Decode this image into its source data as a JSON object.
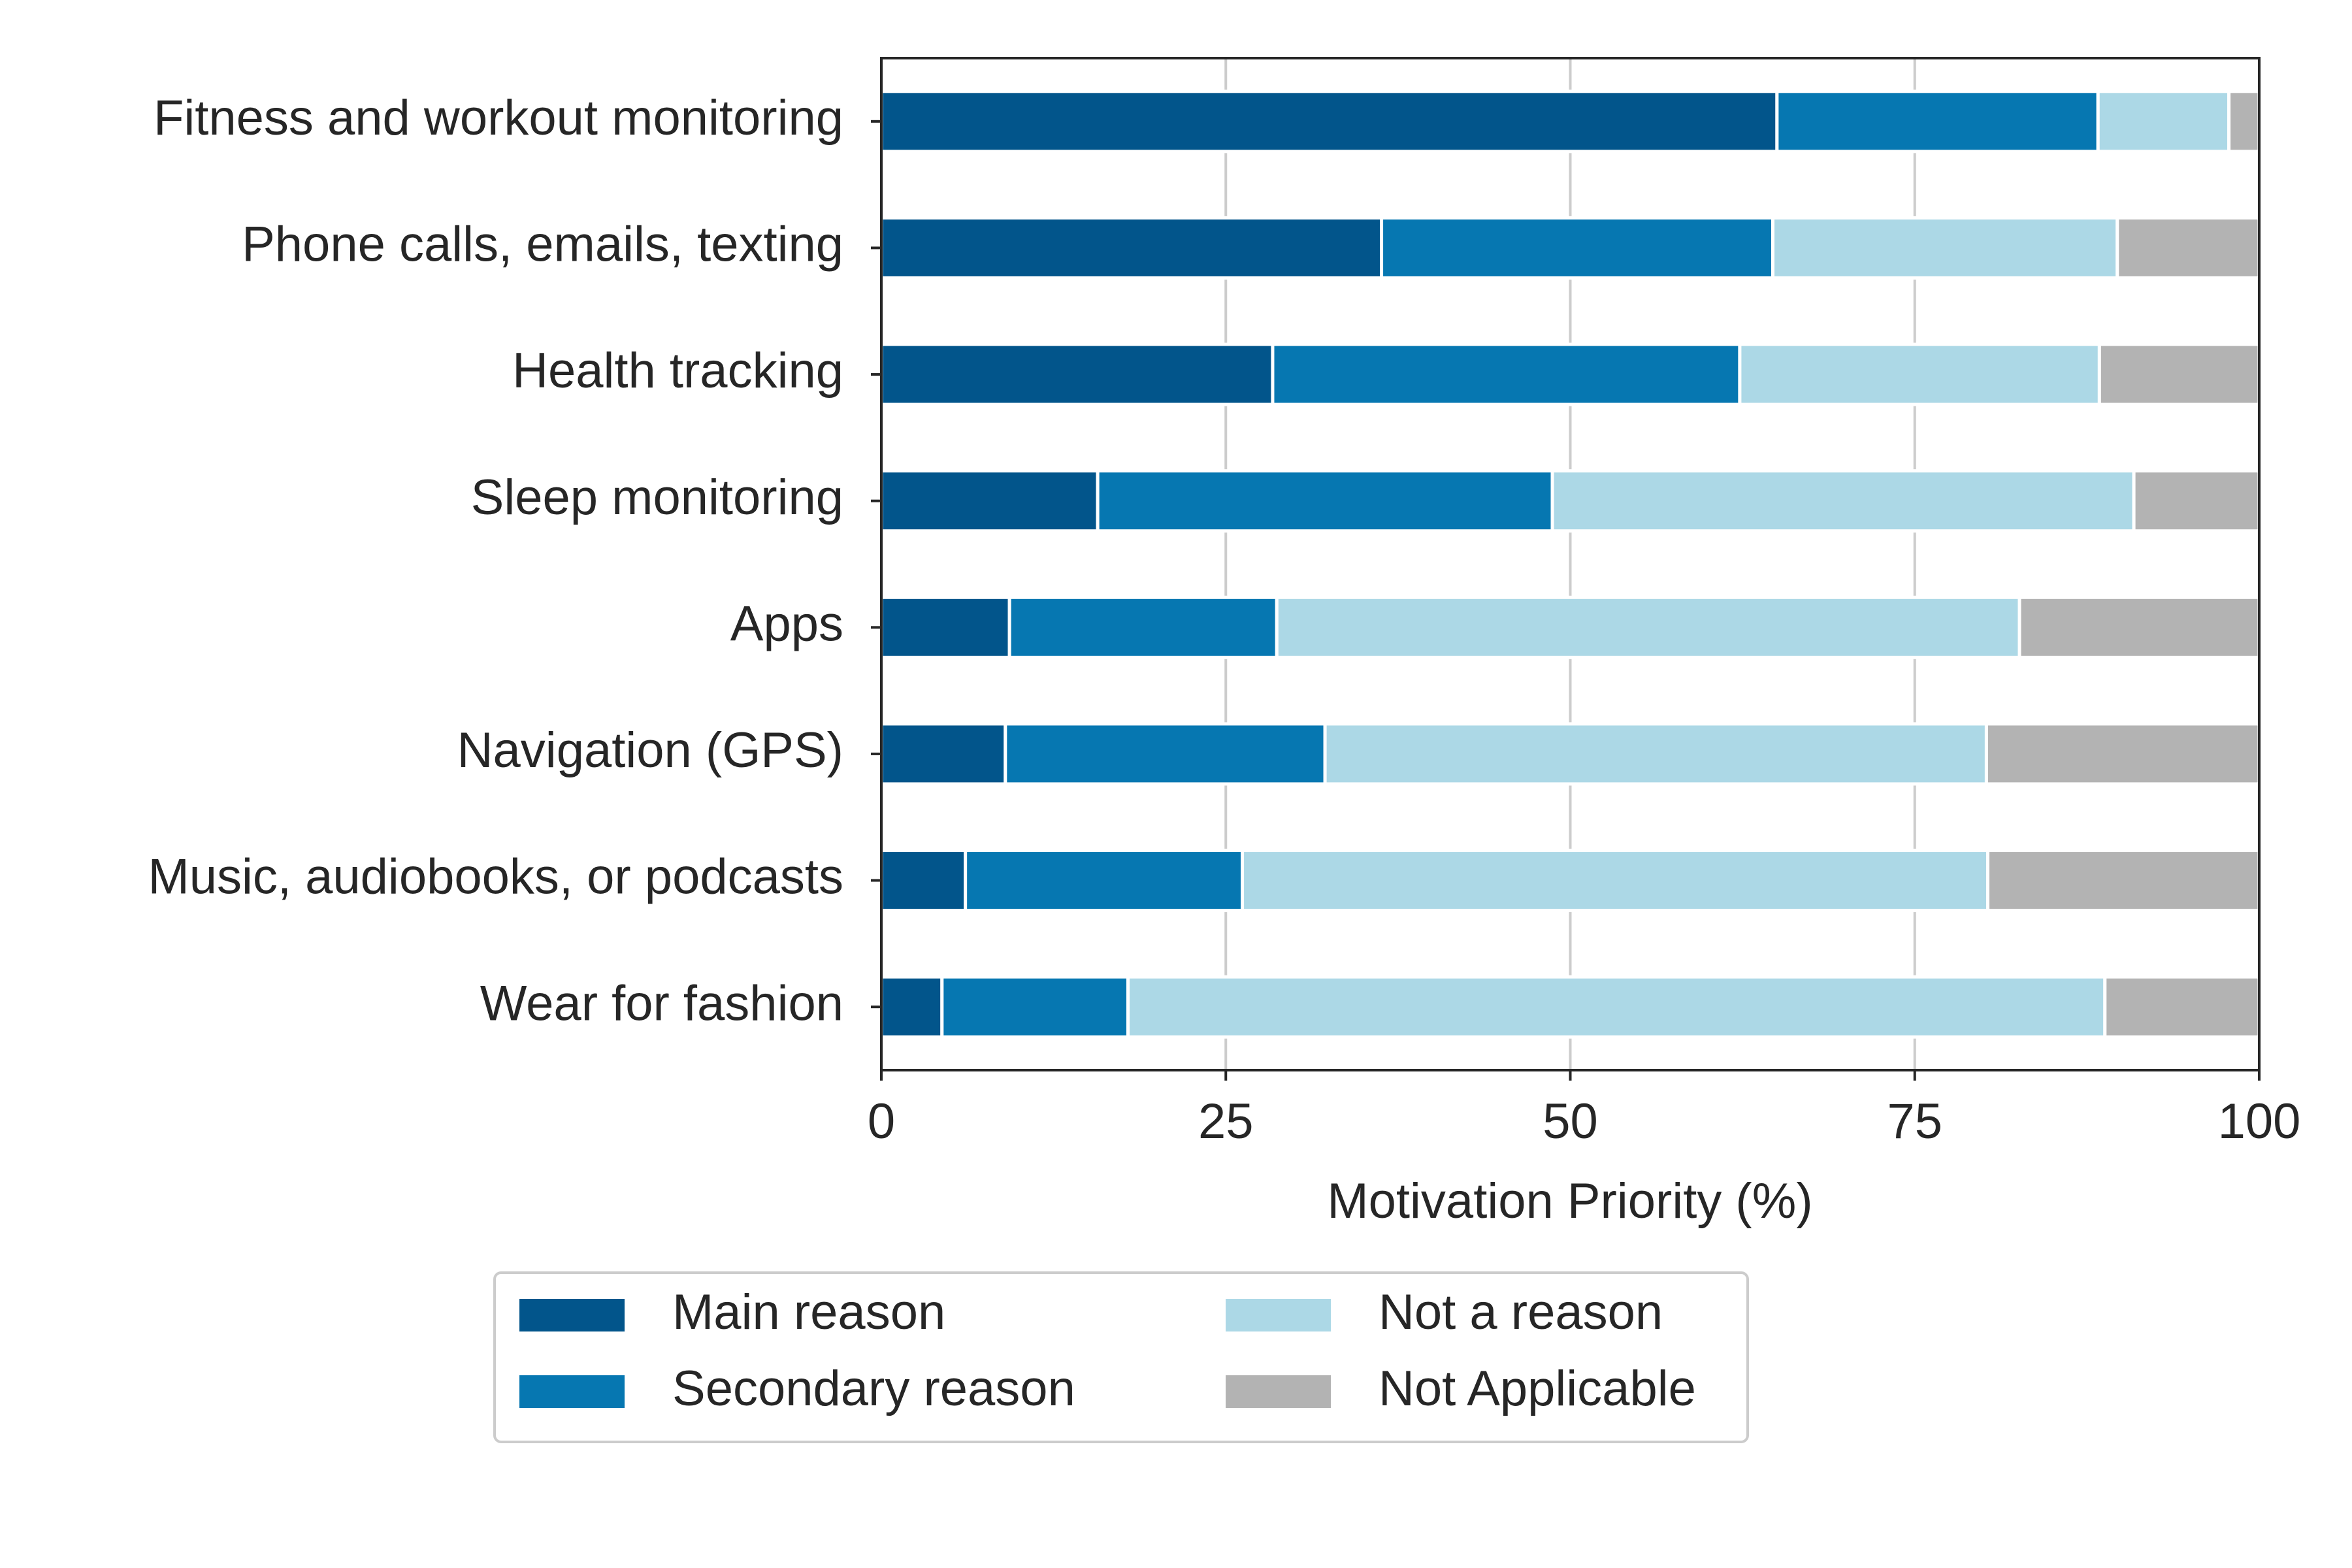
{
  "chart_data": {
    "type": "bar",
    "orientation": "horizontal",
    "stacked": true,
    "categories": [
      "Fitness and workout monitoring",
      "Phone calls, emails, texting",
      "Health tracking",
      "Sleep monitoring",
      "Apps",
      "Navigation (GPS)",
      "Music, audiobooks, or podcasts",
      "Wear for fashion"
    ],
    "series": [
      {
        "name": "Main reason",
        "color": "#02558b",
        "values": [
          65,
          36.3,
          28.4,
          15.7,
          9.3,
          9.0,
          6.1,
          4.4
        ]
      },
      {
        "name": "Secondary reason",
        "color": "#0677b1",
        "values": [
          23.3,
          28.4,
          33.9,
          33.0,
          19.4,
          23.2,
          20.1,
          13.5
        ]
      },
      {
        "name": "Not a reason",
        "color": "#acd8e6",
        "values": [
          9.5,
          25.0,
          26.1,
          42.2,
          53.9,
          48.0,
          54.1,
          70.9
        ]
      },
      {
        "name": "Not Applicable",
        "color": "#b3b3b3",
        "values": [
          2.2,
          10.3,
          11.6,
          9.1,
          17.4,
          19.8,
          19.7,
          11.2
        ]
      }
    ],
    "xlabel": "Motivation Priority (%)",
    "ylabel": "",
    "xlim": [
      0,
      100
    ],
    "xticks": [
      0,
      25,
      50,
      75,
      100
    ],
    "grid": "vertical",
    "legend_position": "bottom, two columns"
  }
}
